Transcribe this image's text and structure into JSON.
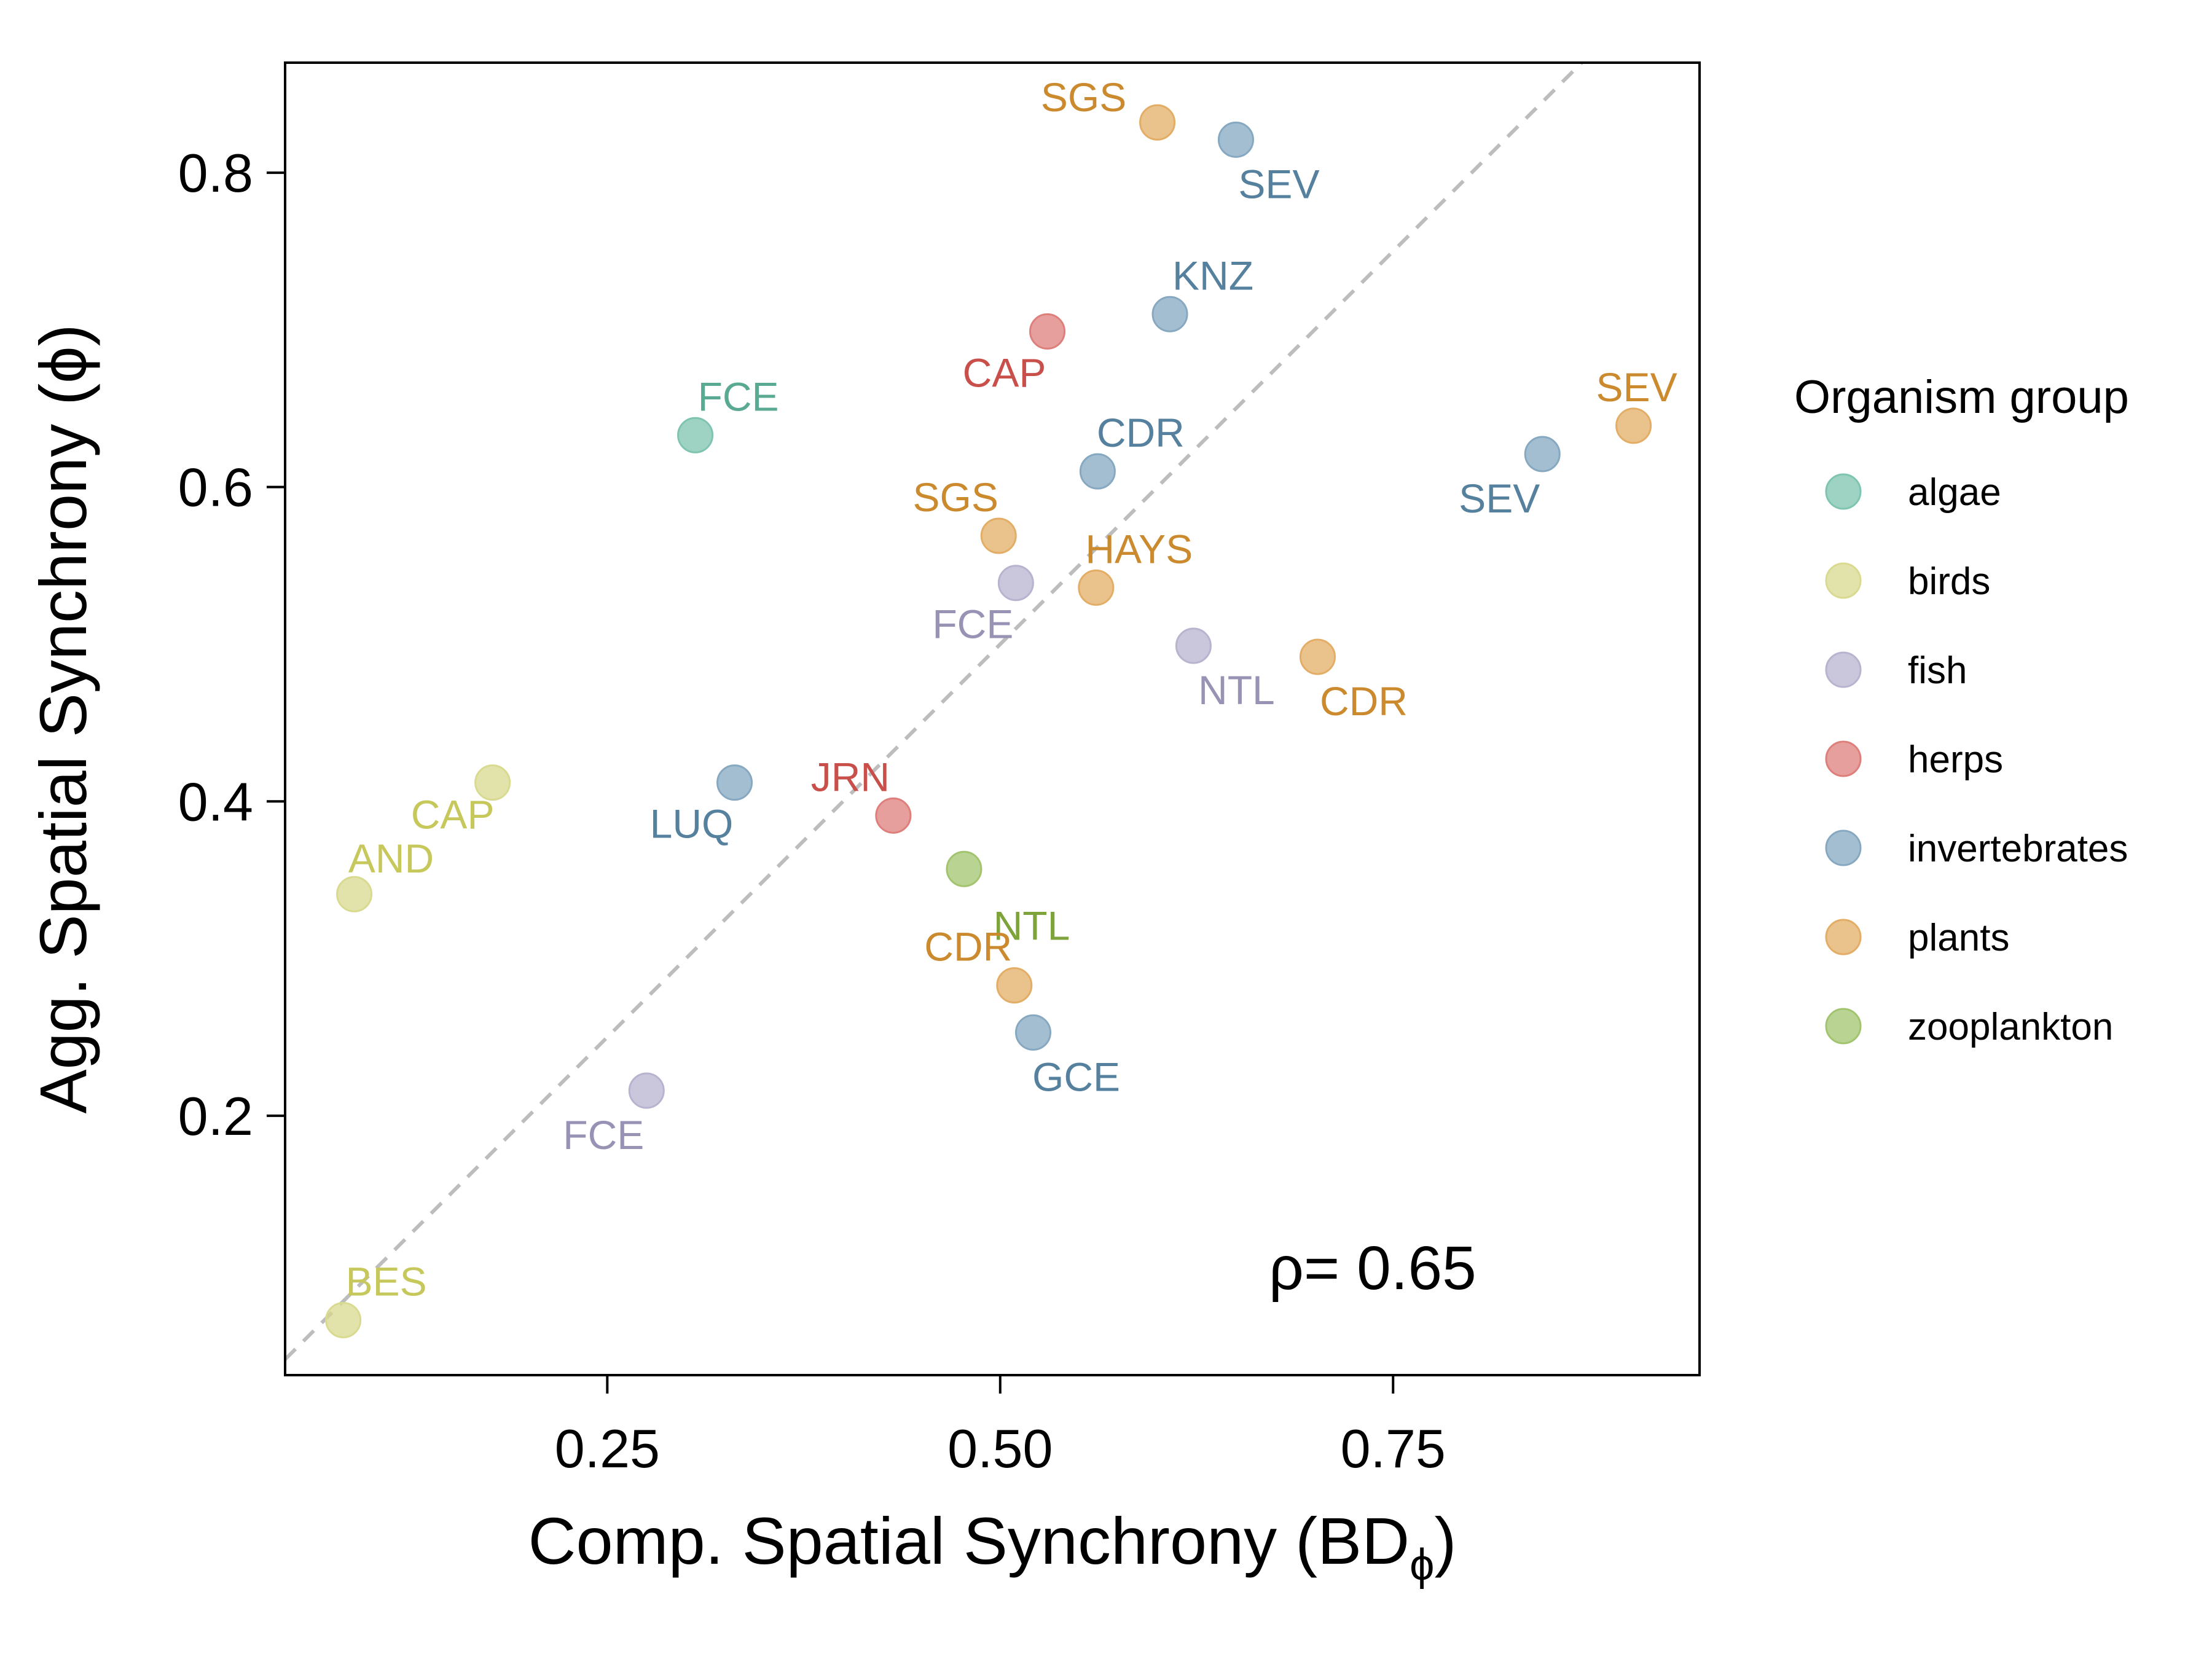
{
  "chart_data": {
    "type": "scatter",
    "xlabel": "Comp. Spatial Synchrony (BD",
    "xlabel_sub": "ϕ",
    "xlabel_end": ")",
    "ylabel": "Agg. Spatial Synchrony (ϕ)",
    "xlim": [
      0.045,
      0.945
    ],
    "ylim": [
      0.035,
      0.87
    ],
    "x_ticks": [
      0.25,
      0.5,
      0.75
    ],
    "x_tick_labels": [
      "0.25",
      "0.50",
      "0.75"
    ],
    "y_ticks": [
      0.2,
      0.4,
      0.6,
      0.8
    ],
    "y_tick_labels": [
      "0.2",
      "0.4",
      "0.6",
      "0.8"
    ],
    "grid": false,
    "reference_line": "y = x (dashed)",
    "annotation": "ρ= 0.65",
    "legend": {
      "title": "Organism group",
      "placement": "right",
      "entries": [
        {
          "name": "algae",
          "color": "#7ec4b0"
        },
        {
          "name": "birds",
          "color": "#d8da8f"
        },
        {
          "name": "fish",
          "color": "#b8b3cf"
        },
        {
          "name": "herps",
          "color": "#de7f7c"
        },
        {
          "name": "invertebrates",
          "color": "#86a8c1"
        },
        {
          "name": "plants",
          "color": "#e3ad66"
        },
        {
          "name": "zooplankton",
          "color": "#a2c46f"
        }
      ]
    },
    "label_colors": {
      "algae": "#5aa993",
      "birds": "#c6c85b",
      "fish": "#9893b5",
      "herps": "#c94f4a",
      "invertebrates": "#56819e",
      "plants": "#cc8a2e",
      "zooplankton": "#7ea33a"
    },
    "points": [
      {
        "site": "SGS",
        "group": "plants",
        "x": 0.6,
        "y": 0.832
      },
      {
        "site": "SEV",
        "group": "invertebrates",
        "x": 0.65,
        "y": 0.821
      },
      {
        "site": "KNZ",
        "group": "invertebrates",
        "x": 0.608,
        "y": 0.71
      },
      {
        "site": "CAP",
        "group": "herps",
        "x": 0.53,
        "y": 0.699
      },
      {
        "site": "FCE",
        "group": "algae",
        "x": 0.306,
        "y": 0.633
      },
      {
        "site": "CDR",
        "group": "invertebrates",
        "x": 0.562,
        "y": 0.61
      },
      {
        "site": "SEV",
        "group": "plants",
        "x": 0.903,
        "y": 0.639
      },
      {
        "site": "SEV",
        "group": "invertebrates",
        "x": 0.845,
        "y": 0.621
      },
      {
        "site": "SGS",
        "group": "plants",
        "x": 0.499,
        "y": 0.569
      },
      {
        "site": "FCE",
        "group": "fish",
        "x": 0.51,
        "y": 0.539
      },
      {
        "site": "HAYS",
        "group": "plants",
        "x": 0.561,
        "y": 0.536
      },
      {
        "site": "NTL",
        "group": "fish",
        "x": 0.623,
        "y": 0.499
      },
      {
        "site": "CDR",
        "group": "plants",
        "x": 0.702,
        "y": 0.492
      },
      {
        "site": "CAP",
        "group": "birds",
        "x": 0.177,
        "y": 0.412
      },
      {
        "site": "LUQ",
        "group": "invertebrates",
        "x": 0.331,
        "y": 0.412
      },
      {
        "site": "JRN",
        "group": "herps",
        "x": 0.432,
        "y": 0.391
      },
      {
        "site": "AND",
        "group": "birds",
        "x": 0.089,
        "y": 0.341
      },
      {
        "site": "NTL",
        "group": "zooplankton",
        "x": 0.477,
        "y": 0.357
      },
      {
        "site": "CDR",
        "group": "plants",
        "x": 0.509,
        "y": 0.283
      },
      {
        "site": "GCE",
        "group": "invertebrates",
        "x": 0.521,
        "y": 0.253
      },
      {
        "site": "FCE",
        "group": "fish",
        "x": 0.275,
        "y": 0.216
      },
      {
        "site": "BES",
        "group": "birds",
        "x": 0.082,
        "y": 0.07
      }
    ]
  }
}
